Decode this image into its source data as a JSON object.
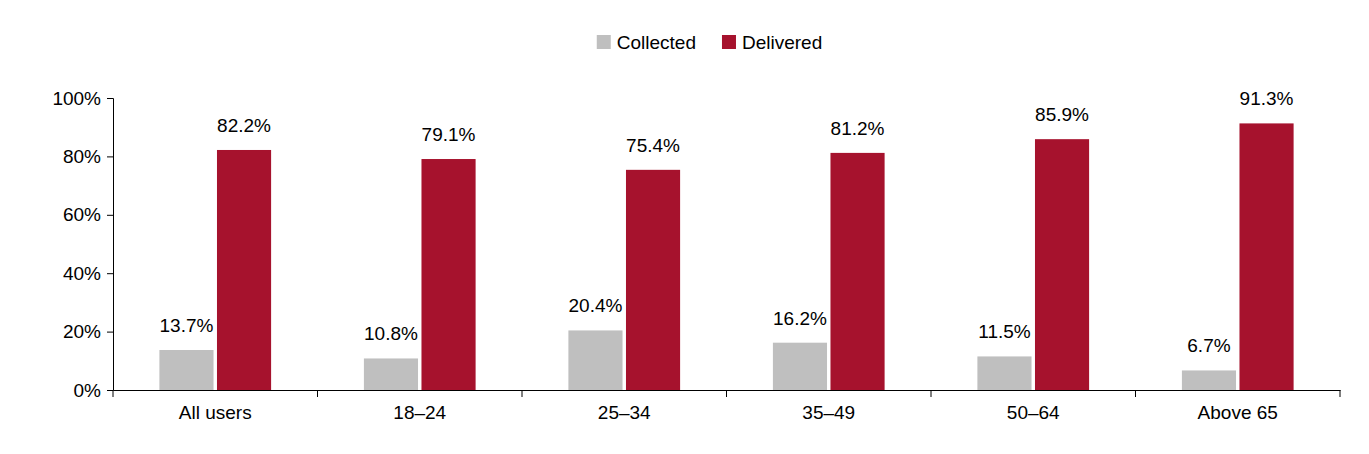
{
  "chart_data": {
    "type": "bar",
    "categories": [
      "All users",
      "18–24",
      "25–34",
      "35–49",
      "50–64",
      "Above 65"
    ],
    "series": [
      {
        "name": "Collected",
        "color": "#bfbfbf",
        "values": [
          13.7,
          10.8,
          20.4,
          16.2,
          11.5,
          6.7
        ],
        "value_labels": [
          "13.7%",
          "10.8%",
          "20.4%",
          "16.2%",
          "11.5%",
          "6.7%"
        ]
      },
      {
        "name": "Delivered",
        "color": "#a6122d",
        "values": [
          82.2,
          79.1,
          75.4,
          81.2,
          85.9,
          91.3
        ],
        "value_labels": [
          "82.2%",
          "79.1%",
          "75.4%",
          "81.2%",
          "85.9%",
          "91.3%"
        ]
      }
    ],
    "ylim": [
      0,
      100
    ],
    "yticks": [
      {
        "value": 0,
        "label": "0%"
      },
      {
        "value": 20,
        "label": "20%"
      },
      {
        "value": 40,
        "label": "40%"
      },
      {
        "value": 60,
        "label": "60%"
      },
      {
        "value": 80,
        "label": "80%"
      },
      {
        "value": 100,
        "label": "100%"
      }
    ],
    "grid": false,
    "legend": "top",
    "data_labels": true
  }
}
